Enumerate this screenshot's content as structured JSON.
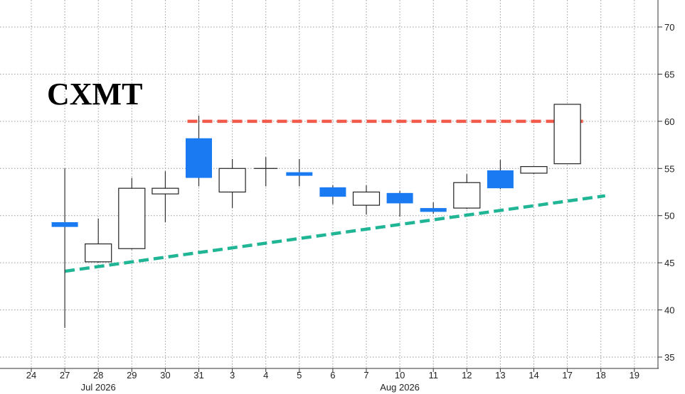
{
  "chart_data": {
    "type": "candlestick",
    "title": "CXMT",
    "xlabel": "",
    "ylabel": "",
    "ylim": [
      34,
      72
    ],
    "y_ticks": [
      35,
      40,
      45,
      50,
      55,
      60,
      65,
      70
    ],
    "x_tick_labels": [
      "24",
      "27",
      "28",
      "29",
      "30",
      "31",
      "3",
      "4",
      "5",
      "6",
      "7",
      "10",
      "11",
      "12",
      "13",
      "14",
      "17",
      "18",
      "19"
    ],
    "month_labels": [
      {
        "label": "Jul 2026",
        "at": "28"
      },
      {
        "label": "Aug 2026",
        "at": "10"
      }
    ],
    "grid": true,
    "y_axis_position": "right",
    "colors": {
      "down_fill": "#1a7af2",
      "up_fill": "#ffffff",
      "wick": "#333333",
      "resistance": "#f25a4b",
      "support": "#1fb595",
      "grid": "#9a9a9a"
    },
    "candles": [
      {
        "date": "27",
        "open": 49.3,
        "high": 55.0,
        "low": 38.1,
        "close": 48.8
      },
      {
        "date": "28",
        "open": 45.1,
        "high": 49.7,
        "low": 45.0,
        "close": 47.0
      },
      {
        "date": "29",
        "open": 46.5,
        "high": 54.0,
        "low": 46.4,
        "close": 52.9
      },
      {
        "date": "30",
        "open": 52.3,
        "high": 54.7,
        "low": 49.3,
        "close": 52.9
      },
      {
        "date": "31",
        "open": 58.2,
        "high": 60.6,
        "low": 53.1,
        "close": 54.0
      },
      {
        "date": "3",
        "open": 52.5,
        "high": 56.0,
        "low": 50.8,
        "close": 55.0
      },
      {
        "date": "4",
        "open": 55.0,
        "high": 56.2,
        "low": 53.1,
        "close": 55.0
      },
      {
        "date": "5",
        "open": 54.6,
        "high": 56.0,
        "low": 53.1,
        "close": 54.3
      },
      {
        "date": "6",
        "open": 53.0,
        "high": 53.2,
        "low": 51.2,
        "close": 52.0
      },
      {
        "date": "7",
        "open": 51.1,
        "high": 53.2,
        "low": 50.1,
        "close": 52.5
      },
      {
        "date": "10",
        "open": 52.4,
        "high": 52.6,
        "low": 49.9,
        "close": 51.3
      },
      {
        "date": "11",
        "open": 50.8,
        "high": 51.4,
        "low": 50.2,
        "close": 50.4
      },
      {
        "date": "12",
        "open": 50.8,
        "high": 54.4,
        "low": 50.7,
        "close": 53.5
      },
      {
        "date": "13",
        "open": 54.8,
        "high": 55.9,
        "low": 52.8,
        "close": 52.9
      },
      {
        "date": "14",
        "open": 54.5,
        "high": 55.2,
        "low": 54.4,
        "close": 55.2
      },
      {
        "date": "17",
        "open": 55.5,
        "high": 61.8,
        "low": 55.5,
        "close": 61.8
      }
    ],
    "trendlines": [
      {
        "name": "resistance",
        "style": "dashed",
        "from": {
          "date": "31",
          "y": 60.0
        },
        "to": {
          "date": "17",
          "y": 60.0
        }
      },
      {
        "name": "support",
        "style": "dashed",
        "from": {
          "date": "27",
          "y": 44.1
        },
        "to": {
          "date": "18",
          "y": 52.1
        }
      }
    ]
  }
}
